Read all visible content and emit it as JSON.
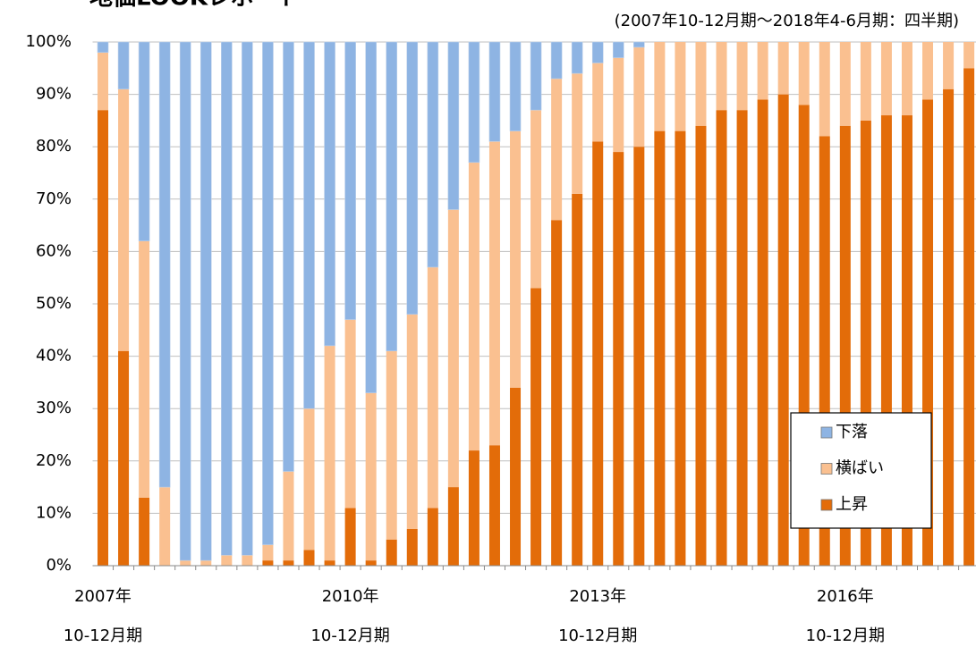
{
  "chart_data": {
    "type": "stacked_bar",
    "title": "地価LOOKレポート",
    "subtitle": "(2007年10-12月期～2018年4-6月期：四半期)",
    "categories": [
      [
        "2007年",
        "10-12月期"
      ],
      null,
      null,
      null,
      null,
      null,
      null,
      null,
      null,
      null,
      null,
      null,
      [
        "2010年",
        "10-12月期"
      ],
      null,
      null,
      null,
      null,
      null,
      null,
      null,
      null,
      null,
      null,
      null,
      [
        "2013年",
        "10-12月期"
      ],
      null,
      null,
      null,
      null,
      null,
      null,
      null,
      null,
      null,
      null,
      null,
      [
        "2016年",
        "10-12月期"
      ],
      null,
      null,
      null,
      null,
      null,
      null
    ],
    "series": [
      {
        "name": "上昇",
        "color": "#e36c09",
        "values": [
          87,
          41,
          13,
          0,
          0,
          0,
          0,
          0,
          1,
          1,
          3,
          1,
          11,
          1,
          5,
          7,
          11,
          15,
          22,
          23,
          34,
          53,
          66,
          71,
          81,
          79,
          80,
          83,
          83,
          84,
          87,
          87,
          89,
          90,
          88,
          82,
          84,
          85,
          86,
          86,
          89,
          91,
          95
        ]
      },
      {
        "name": "横ばい",
        "color": "#fac090",
        "values": [
          11,
          50,
          49,
          15,
          1,
          1,
          2,
          2,
          3,
          17,
          27,
          41,
          36,
          32,
          36,
          41,
          46,
          53,
          55,
          58,
          49,
          34,
          27,
          23,
          15,
          18,
          19,
          17,
          17,
          16,
          13,
          13,
          11,
          10,
          12,
          18,
          16,
          15,
          14,
          14,
          11,
          9,
          5
        ]
      },
      {
        "name": "下落",
        "color": "#8eb4e3",
        "values": [
          2,
          9,
          38,
          85,
          99,
          99,
          98,
          98,
          96,
          82,
          70,
          58,
          53,
          67,
          59,
          52,
          43,
          32,
          23,
          19,
          17,
          13,
          7,
          6,
          4,
          3,
          1,
          0,
          0,
          0,
          0,
          0,
          0,
          0,
          0,
          0,
          0,
          0,
          0,
          0,
          0,
          0,
          0
        ]
      }
    ],
    "ylim": [
      0,
      100
    ],
    "yticks": [
      {
        "value": 0,
        "label": "0%"
      },
      {
        "value": 10,
        "label": "10%"
      },
      {
        "value": 20,
        "label": "20%"
      },
      {
        "value": 30,
        "label": "30%"
      },
      {
        "value": 40,
        "label": "40%"
      },
      {
        "value": 50,
        "label": "50%"
      },
      {
        "value": 60,
        "label": "60%"
      },
      {
        "value": 70,
        "label": "70%"
      },
      {
        "value": 80,
        "label": "80%"
      },
      {
        "value": 90,
        "label": "90%"
      },
      {
        "value": 100,
        "label": "100%"
      }
    ],
    "grid": true,
    "legend": "lower right"
  }
}
